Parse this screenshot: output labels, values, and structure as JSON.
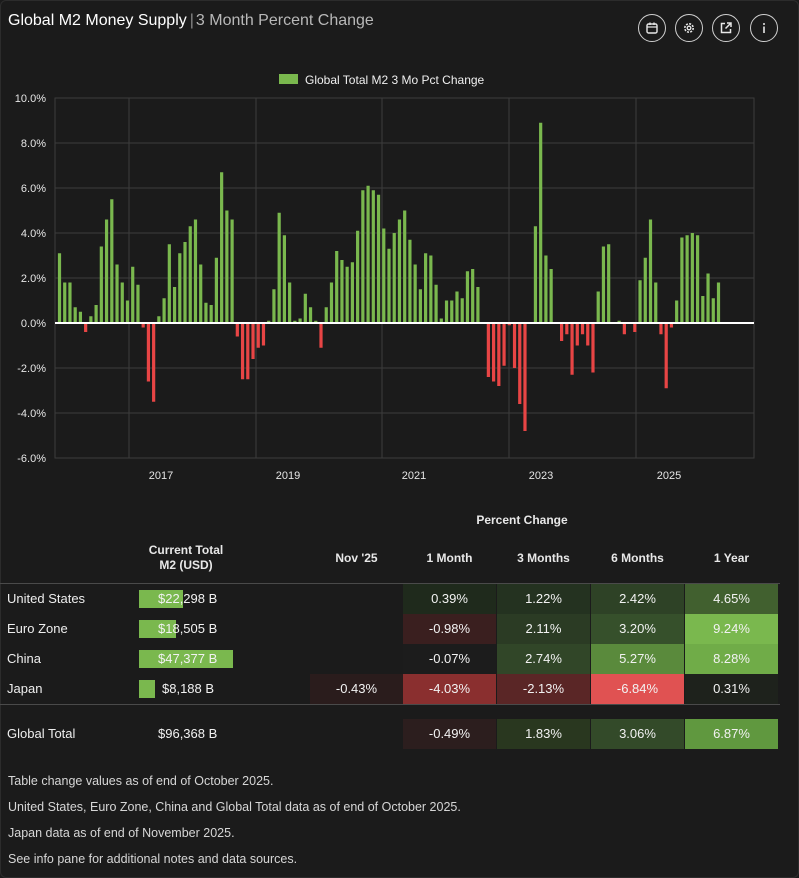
{
  "header": {
    "title_main": "Global M2 Money Supply",
    "separator": "|",
    "title_sub": "3 Month Percent Change",
    "icons": [
      "calendar-icon",
      "gear-icon",
      "external-link-icon",
      "info-icon"
    ]
  },
  "chart_data": {
    "type": "bar",
    "title": "Global Total M2 3 Mo Pct Change",
    "legend": [
      "Global Total M2 3 Mo Pct Change"
    ],
    "legend_position": "top-center",
    "ylim": [
      -6,
      10
    ],
    "yticks": [
      "10.0%",
      "8.0%",
      "6.0%",
      "4.0%",
      "2.0%",
      "0.0%",
      "-2.0%",
      "-4.0%",
      "-6.0%"
    ],
    "xticks": [
      "2017",
      "2019",
      "2021",
      "2023",
      "2025"
    ],
    "colors": {
      "positive": "#7ab84e",
      "negative": "#e84545"
    },
    "series": [
      {
        "name": "Global Total M2 3 Mo Pct Change",
        "values": [
          3.1,
          1.8,
          1.8,
          0.7,
          0.5,
          -0.4,
          0.3,
          0.8,
          3.4,
          4.6,
          5.5,
          2.6,
          1.8,
          1.0,
          2.5,
          1.7,
          -0.2,
          -2.6,
          -3.5,
          0.3,
          1.1,
          3.5,
          1.6,
          3.1,
          3.6,
          4.3,
          4.6,
          2.6,
          0.9,
          0.8,
          2.9,
          6.7,
          5.0,
          4.6,
          -0.6,
          -2.5,
          -2.5,
          -1.6,
          -1.1,
          -1.0,
          0.1,
          1.5,
          4.9,
          3.9,
          1.8,
          0.1,
          0.2,
          1.3,
          0.7,
          0.1,
          -1.1,
          0.7,
          1.8,
          3.2,
          2.8,
          2.5,
          2.7,
          4.1,
          5.9,
          6.1,
          5.9,
          5.7,
          4.2,
          3.3,
          4.0,
          4.6,
          5.0,
          3.7,
          2.6,
          1.5,
          3.1,
          3.0,
          1.7,
          0.2,
          1.0,
          1.0,
          1.4,
          1.1,
          2.3,
          2.4,
          1.6,
          0.0,
          -2.4,
          -2.6,
          -2.8,
          -1.9,
          -0.1,
          -2.0,
          -3.6,
          -4.8,
          0.0,
          4.3,
          8.9,
          3.0,
          2.4,
          0.0,
          -0.8,
          -0.5,
          -2.3,
          -1.0,
          -0.5,
          -1.0,
          -2.2,
          1.4,
          3.4,
          3.5,
          0.0,
          0.1,
          -0.5,
          0.0,
          -0.4,
          1.9,
          2.9,
          4.6,
          1.8,
          -0.5,
          -2.9,
          -0.2,
          1.0,
          3.8,
          3.9,
          4.0,
          3.9,
          1.2,
          2.2,
          1.1,
          1.8
        ]
      }
    ]
  },
  "table": {
    "group_header": "Percent Change",
    "columns": {
      "current": "Current Total\nM2 (USD)",
      "nov25": "Nov '25",
      "m1": "1 Month",
      "m3": "3 Months",
      "m6": "6 Months",
      "y1": "1 Year"
    },
    "rows": [
      {
        "name": "United States",
        "total": "$22,298 B",
        "bar_frac": 0.47,
        "nov25": "",
        "m1": "0.39%",
        "m3": "1.22%",
        "m6": "2.42%",
        "y1": "4.65%",
        "colors": {
          "nov25": "",
          "m1": "#1f2a1c",
          "m3": "#243220",
          "m6": "#2e4226",
          "y1": "#41602f"
        }
      },
      {
        "name": "Euro Zone",
        "total": "$18,505 B",
        "bar_frac": 0.39,
        "nov25": "",
        "m1": "-0.98%",
        "m3": "2.11%",
        "m6": "3.20%",
        "y1": "9.24%",
        "colors": {
          "nov25": "",
          "m1": "#3a1f1f",
          "m3": "#2b3b24",
          "m6": "#36502b",
          "y1": "#7ab84e"
        }
      },
      {
        "name": "China",
        "total": "$47,377 B",
        "bar_frac": 1.0,
        "nov25": "",
        "m1": "-0.07%",
        "m3": "2.74%",
        "m6": "5.27%",
        "y1": "8.28%",
        "colors": {
          "nov25": "",
          "m1": "#1c1c1c",
          "m3": "#314628",
          "m6": "#5a8a3c",
          "y1": "#70ac48"
        }
      },
      {
        "name": "Japan",
        "total": "$8,188 B",
        "bar_frac": 0.17,
        "nov25": "-0.43%",
        "m1": "-4.03%",
        "m3": "-2.13%",
        "m6": "-6.84%",
        "y1": "0.31%",
        "colors": {
          "nov25": "#2a1c1c",
          "m1": "#8a2f2f",
          "m3": "#5a2626",
          "m6": "#e05252",
          "y1": "#1e221c"
        }
      }
    ],
    "total_row": {
      "name": "Global Total",
      "total": "$96,368 B",
      "nov25": "",
      "m1": "-0.49%",
      "m3": "1.83%",
      "m6": "3.06%",
      "y1": "6.87%",
      "colors": {
        "nov25": "",
        "m1": "#2c1e1e",
        "m3": "#29371f",
        "m6": "#334a29",
        "y1": "#60983f"
      }
    }
  },
  "notes": [
    "Table change values as of end of October 2025.",
    "United States, Euro Zone, China and Global Total data as of end of October 2025.",
    "Japan data as of end of November 2025.",
    "See info pane for additional notes and data sources."
  ]
}
